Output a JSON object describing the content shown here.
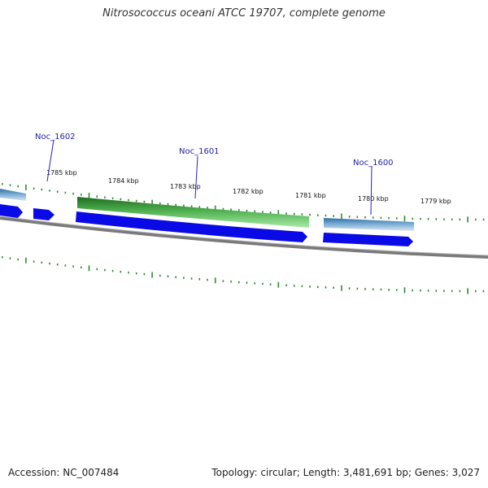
{
  "title": "Nitrosococcus oceani ATCC 19707, complete genome",
  "footer": {
    "accession": "Accession: NC_007484",
    "summary": "Topology: circular; Length: 3,481,691 bp; Genes: 3,027"
  },
  "colors": {
    "backbone": "#808080",
    "cds": "#0a0ae6",
    "rna_green_dark": "#2a7a2a",
    "rna_green_light": "#8ce08c",
    "blue_feature": "#3f7fb0",
    "tick": "#2e8b2e",
    "gene_label": "#2222aa"
  },
  "tick_labels": [
    "1785 kbp",
    "1784 kbp",
    "1783 kbp",
    "1782 kbp",
    "1781 kbp",
    "1780 kbp",
    "1779 kbp"
  ],
  "gene_labels": [
    "Noc_1602",
    "Noc_1601",
    "Noc_1600"
  ]
}
